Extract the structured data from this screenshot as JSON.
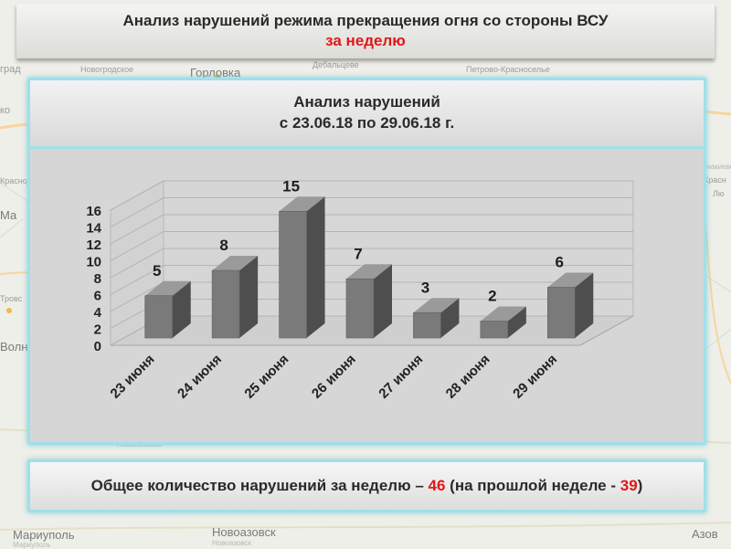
{
  "header": {
    "title": "Анализ нарушений режима прекращения огня со стороны ВСУ",
    "subtitle": "за неделю"
  },
  "chart_box": {
    "title_line1": "Анализ нарушений",
    "title_line2": "с 23.06.18 по 29.06.18 г."
  },
  "chart_data": {
    "type": "bar",
    "style": "3d-column",
    "categories": [
      "23 июня",
      "24 июня",
      "25 июня",
      "26 июня",
      "27 июня",
      "28 июня",
      "29 июня"
    ],
    "values": [
      5,
      8,
      15,
      7,
      3,
      2,
      6
    ],
    "ylim": [
      0,
      16
    ],
    "yticks": [
      0,
      2,
      4,
      6,
      8,
      10,
      12,
      14,
      16
    ],
    "grid": true,
    "legend": "none",
    "bar_color": "#7a7a7a"
  },
  "footer": {
    "text_prefix": "Общее количество нарушений за неделю –",
    "total_week": "46",
    "text_middle": "(на прошлой неделе -",
    "total_prev_week": "39",
    "text_suffix": ")"
  },
  "map_labels": [
    "град",
    "Новогродское",
    "Горловка",
    "Дебальцеве",
    "Петрово-Красноселье",
    "ко",
    "Краснодон",
    "Ма",
    "Тровс",
    "Волн",
    "Мариуполь",
    "Новоазовск",
    "Азов",
    "Новоазовск",
    "Мариуполь",
    "Новолазівськ",
    "Енакиево",
    "Красн",
    "Лю"
  ]
}
